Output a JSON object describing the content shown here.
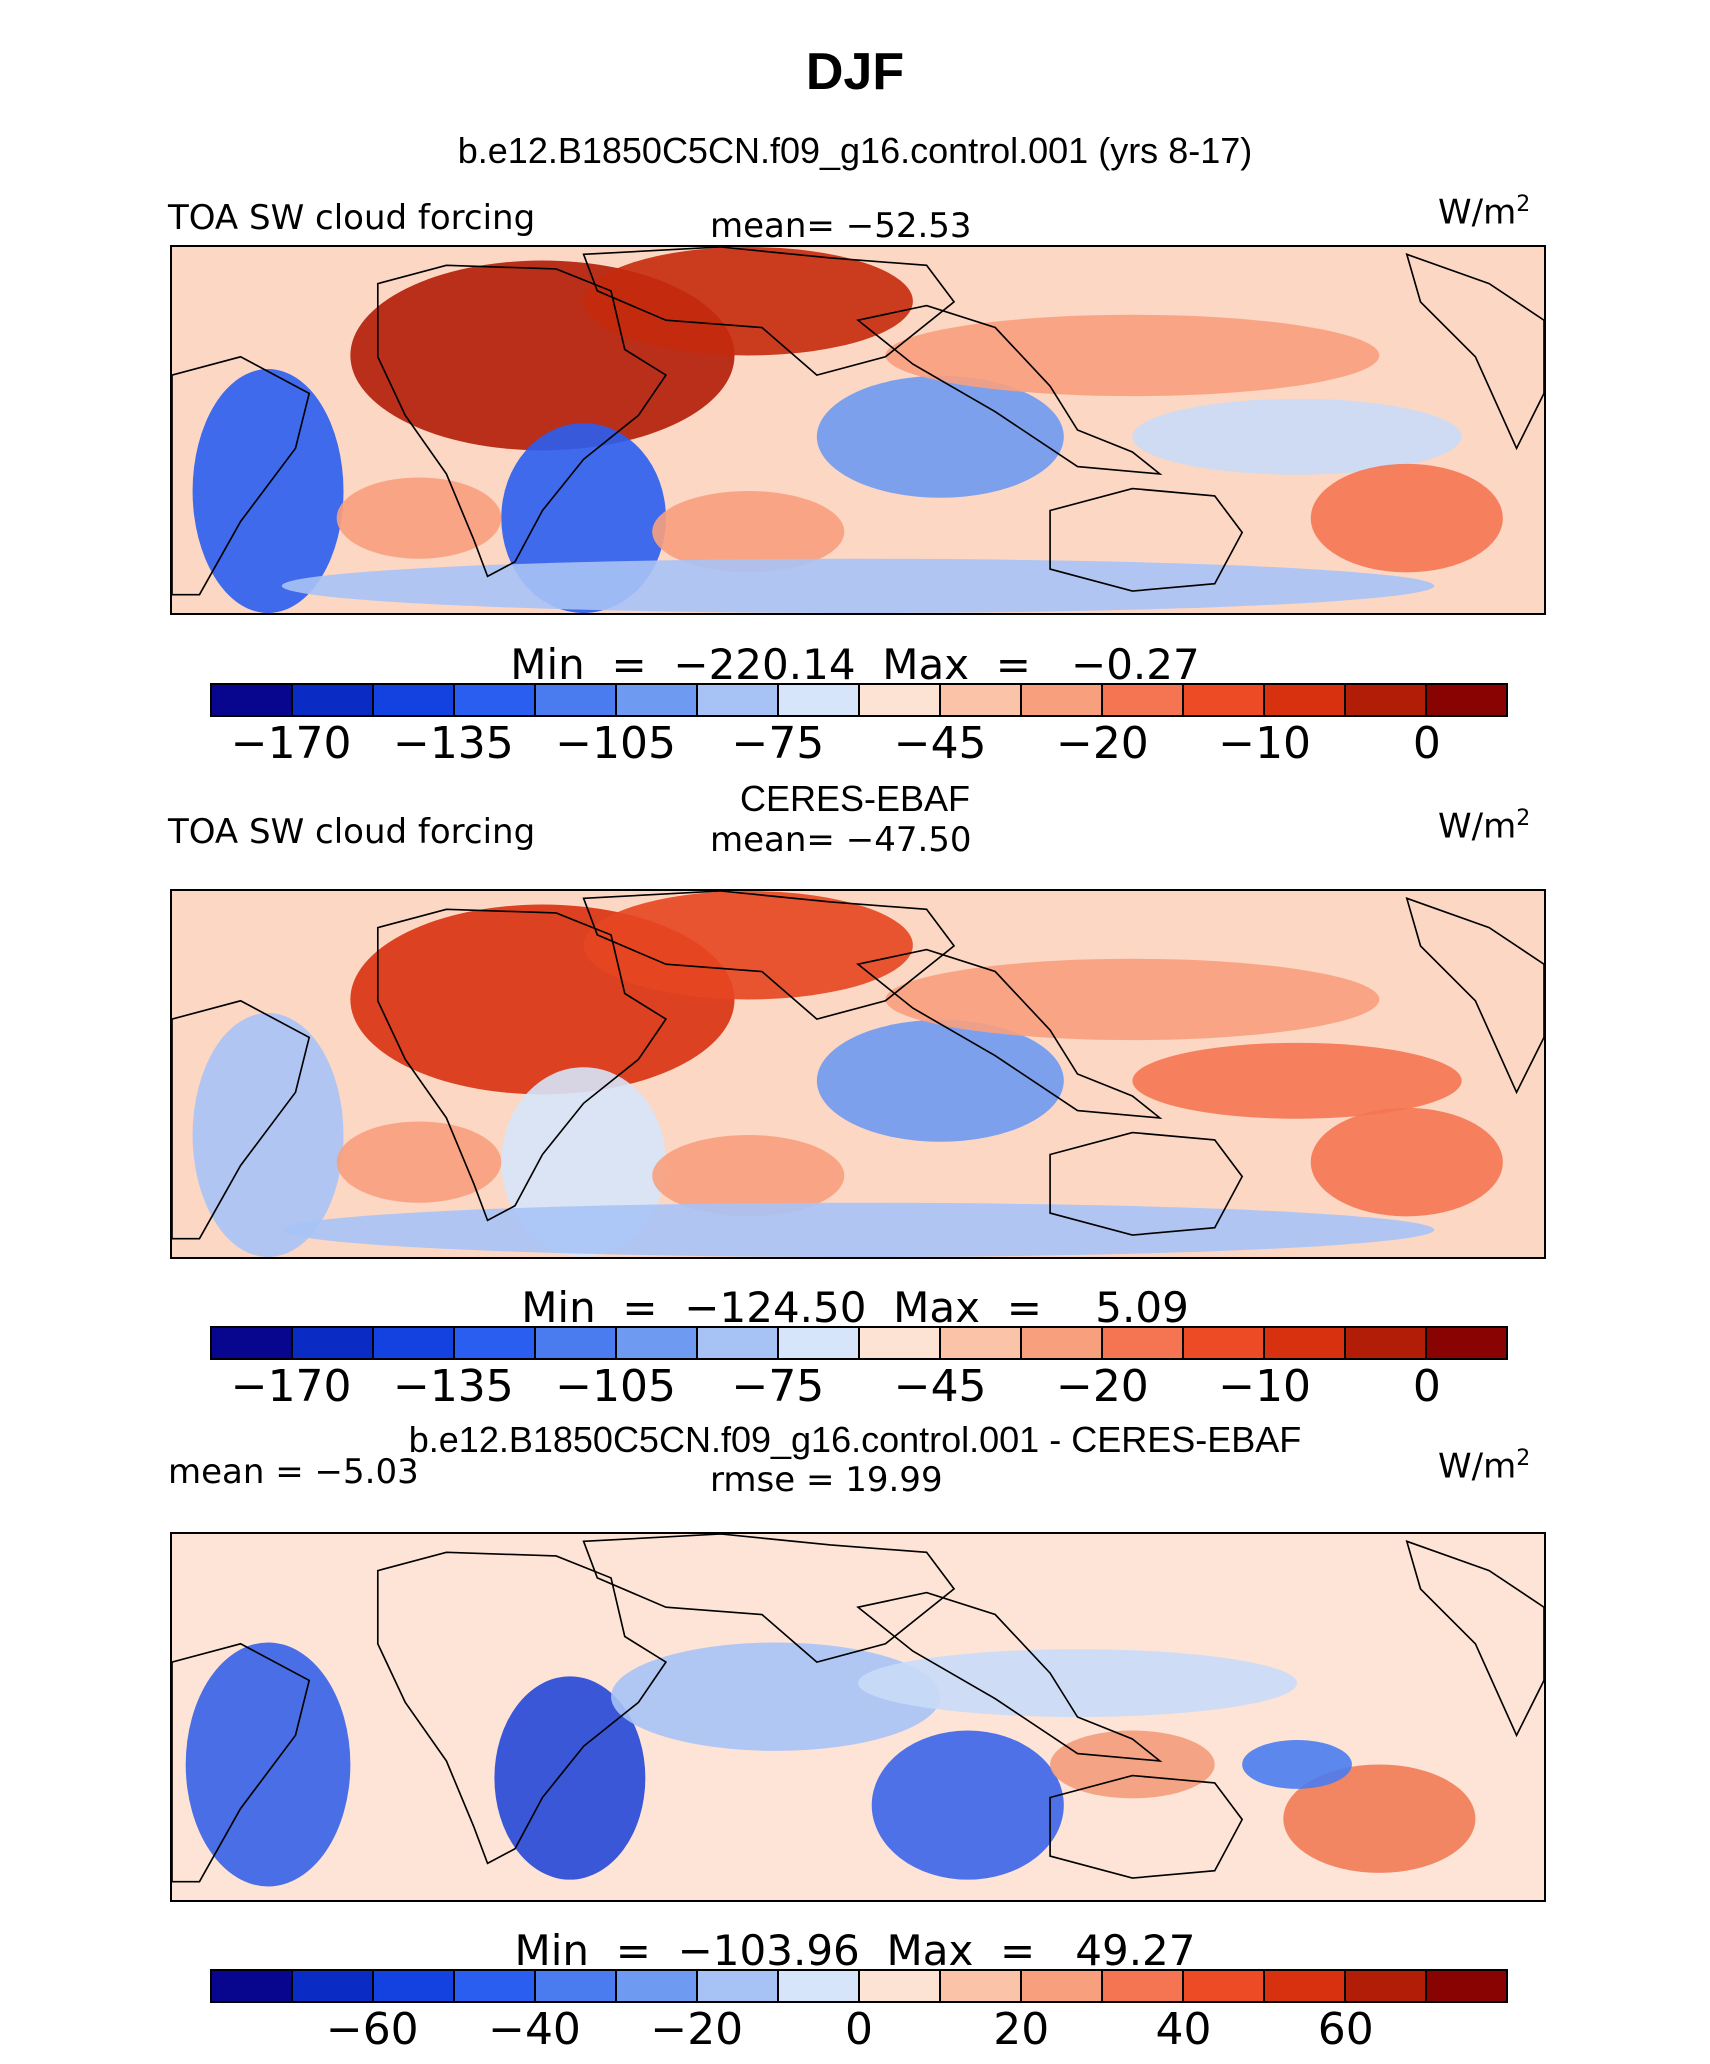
{
  "title": "DJF",
  "units_base": "W/m",
  "units_exp": "2",
  "panels": [
    {
      "id": "model",
      "title": "b.e12.B1850C5CN.f09_g16.control.001 (yrs 8-17)",
      "left_label": "TOA SW cloud forcing",
      "center_label": "mean=  −52.53",
      "minmax": "Min  =  −220.14  Max  =   −0.27",
      "colorbar": "abs",
      "map": {
        "bias": "#fbd7c4",
        "hot": 1.0
      }
    },
    {
      "id": "obs",
      "title": "CERES-EBAF",
      "left_label": "TOA SW cloud forcing",
      "center_label": "mean=  −47.50",
      "minmax": "Min  =  −124.50  Max  =    5.09",
      "colorbar": "abs",
      "map": {
        "bias": "#fbd7c4",
        "hot": 0.8
      }
    },
    {
      "id": "diff",
      "title": "b.e12.B1850C5CN.f09_g16.control.001 - CERES-EBAF",
      "left_label": "mean =   −5.03",
      "center_label": "rmse =   19.99",
      "minmax": "Min  =  −103.96  Max  =   49.27",
      "colorbar": "diff",
      "map": {
        "bias": "#fde4d6",
        "hot": 0.5
      }
    }
  ],
  "colorbars": {
    "abs": {
      "colors": [
        "#08068f",
        "#0b2cc4",
        "#1342e0",
        "#2a5ef0",
        "#4a7cef",
        "#6f9af2",
        "#a7c3f6",
        "#d6e5fa",
        "#fde3d4",
        "#fbc3a8",
        "#f8a07e",
        "#f57552",
        "#ed4a26",
        "#d8310f",
        "#b21d08",
        "#8a0303"
      ],
      "tick_labels": [
        "−170",
        "−135",
        "−105",
        "−75",
        "−45",
        "−20",
        "−10",
        "0"
      ]
    },
    "diff": {
      "colors": [
        "#08068f",
        "#0b2cc4",
        "#1342e0",
        "#2a5ef0",
        "#4a7cef",
        "#6f9af2",
        "#a7c3f6",
        "#d6e5fa",
        "#fde3d4",
        "#fbc3a8",
        "#f8a07e",
        "#f57552",
        "#ed4a26",
        "#d8310f",
        "#b21d08",
        "#8a0303"
      ],
      "tick_labels": [
        "−60",
        "−40",
        "−20",
        "0",
        "20",
        "40",
        "60"
      ]
    }
  }
}
